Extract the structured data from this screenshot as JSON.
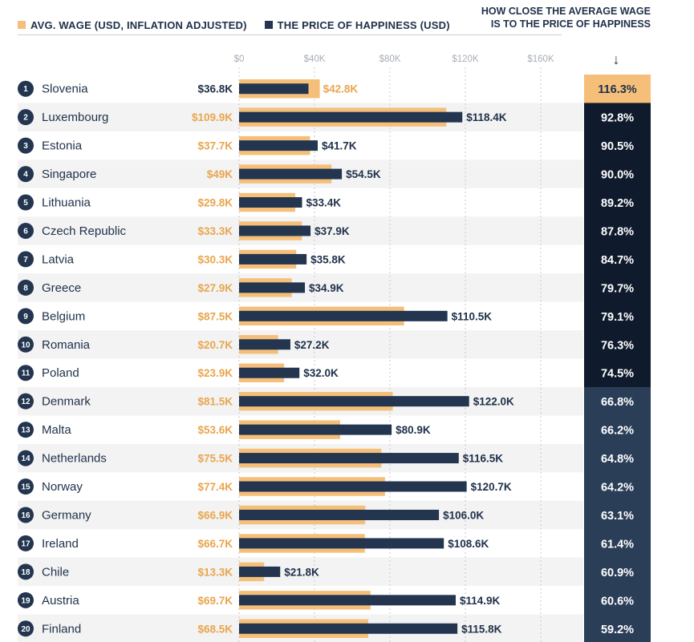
{
  "legend": {
    "wage_label": "AVG. WAGE (USD, INFLATION ADJUSTED)",
    "price_label": "THE PRICE OF HAPPINESS (USD)"
  },
  "headline": {
    "line1": "HOW CLOSE THE AVERAGE WAGE",
    "line2": "IS TO THE PRICE OF HAPPINESS",
    "arrow": "↓"
  },
  "colors": {
    "wage": "#f5bf7a",
    "price": "#23354f",
    "wage_text": "#e8a64e",
    "pct_highlight": "#f5bf7a",
    "pct_dark": "#0f1b2c",
    "pct_mid": "#2b3e58",
    "row_band": "#f3f3f3"
  },
  "chart_data": {
    "type": "bar",
    "orientation": "horizontal",
    "x_ticks": [
      "$0",
      "$40K",
      "$80K",
      "$120K",
      "$160K"
    ],
    "xlim": [
      0,
      170000
    ],
    "ranks": [
      1,
      2,
      3,
      4,
      5,
      6,
      7,
      8,
      9,
      10,
      11,
      12,
      13,
      14,
      15,
      16,
      17,
      18,
      19,
      20
    ],
    "categories": [
      "Slovenia",
      "Luxembourg",
      "Estonia",
      "Singapore",
      "Lithuania",
      "Czech Republic",
      "Latvia",
      "Greece",
      "Belgium",
      "Romania",
      "Poland",
      "Denmark",
      "Malta",
      "Netherlands",
      "Norway",
      "Germany",
      "Ireland",
      "Chile",
      "Austria",
      "Finland"
    ],
    "series": [
      {
        "name": "AVG. WAGE (USD, INFLATION ADJUSTED)",
        "values": [
          42800,
          109900,
          37700,
          49000,
          29800,
          33300,
          30300,
          27900,
          87500,
          20700,
          23900,
          81500,
          53600,
          75500,
          77400,
          66900,
          66700,
          13300,
          69700,
          68500
        ],
        "labels": [
          "$42.8K",
          "$109.9K",
          "$37.7K",
          "$49K",
          "$29.8K",
          "$33.3K",
          "$30.3K",
          "$27.9K",
          "$87.5K",
          "$20.7K",
          "$23.9K",
          "$81.5K",
          "$53.6K",
          "$75.5K",
          "$77.4K",
          "$66.9K",
          "$66.7K",
          "$13.3K",
          "$69.7K",
          "$68.5K"
        ]
      },
      {
        "name": "THE PRICE OF HAPPINESS (USD)",
        "values": [
          36800,
          118400,
          41700,
          54500,
          33400,
          37900,
          35800,
          34900,
          110500,
          27200,
          32000,
          122000,
          80900,
          116500,
          120700,
          106000,
          108600,
          21800,
          114900,
          115800
        ],
        "labels": [
          "$36.8K",
          "$118.4K",
          "$41.7K",
          "$54.5K",
          "$33.4K",
          "$37.9K",
          "$35.8K",
          "$34.9K",
          "$110.5K",
          "$27.2K",
          "$32.0K",
          "$122.0K",
          "$80.9K",
          "$116.5K",
          "$120.7K",
          "$106.0K",
          "$108.6K",
          "$21.8K",
          "$114.9K",
          "$115.8K"
        ]
      }
    ],
    "percent_of_happiness": [
      "116.3%",
      "92.8%",
      "90.5%",
      "90.0%",
      "89.2%",
      "87.8%",
      "84.7%",
      "79.7%",
      "79.1%",
      "76.3%",
      "74.5%",
      "66.8%",
      "66.2%",
      "64.8%",
      "64.2%",
      "63.1%",
      "61.4%",
      "60.9%",
      "60.6%",
      "59.2%"
    ],
    "percent_values": [
      116.3,
      92.8,
      90.5,
      90.0,
      89.2,
      87.8,
      84.7,
      79.7,
      79.1,
      76.3,
      74.5,
      66.8,
      66.2,
      64.8,
      64.2,
      63.1,
      61.4,
      60.9,
      60.6,
      59.2
    ]
  }
}
